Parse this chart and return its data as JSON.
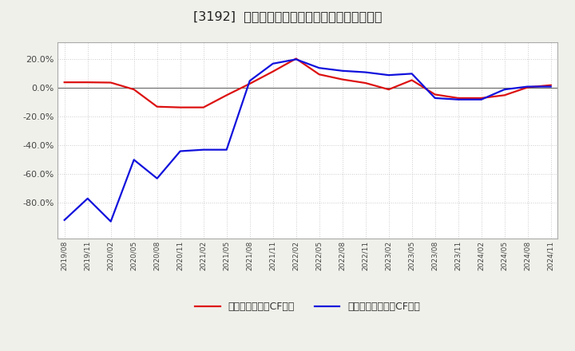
{
  "title": "[3192]  有利子負債キャッシュフロー比率の推移",
  "ylim": [
    -1.05,
    0.32
  ],
  "yticks": [
    0.2,
    0.0,
    -0.2,
    -0.4,
    -0.6,
    -0.8
  ],
  "legend_labels": [
    "有利子負債営業CF比率",
    "有利子負債フリーCF比率"
  ],
  "line_colors": [
    "#dd1111",
    "#1111dd"
  ],
  "background_color": "#f0f0eb",
  "plot_bg_color": "#ffffff",
  "x_labels": [
    "2019/08",
    "2019/11",
    "2020/02",
    "2020/05",
    "2020/08",
    "2020/11",
    "2021/02",
    "2021/05",
    "2021/08",
    "2021/11",
    "2022/02",
    "2022/05",
    "2022/08",
    "2022/11",
    "2023/02",
    "2023/05",
    "2023/08",
    "2023/11",
    "2024/02",
    "2024/05",
    "2024/08",
    "2024/11"
  ],
  "red_values": [
    0.04,
    0.04,
    0.038,
    -0.01,
    -0.13,
    -0.135,
    -0.135,
    -0.05,
    0.03,
    0.115,
    0.205,
    0.095,
    0.06,
    0.035,
    -0.01,
    0.055,
    -0.045,
    -0.07,
    -0.07,
    -0.05,
    0.005,
    0.02
  ],
  "blue_values": [
    -0.92,
    -0.77,
    -0.93,
    -0.5,
    -0.63,
    -0.44,
    -0.43,
    -0.43,
    0.05,
    0.17,
    0.2,
    0.14,
    0.12,
    0.11,
    0.09,
    0.1,
    -0.07,
    -0.08,
    -0.08,
    -0.01,
    0.01,
    0.01
  ]
}
